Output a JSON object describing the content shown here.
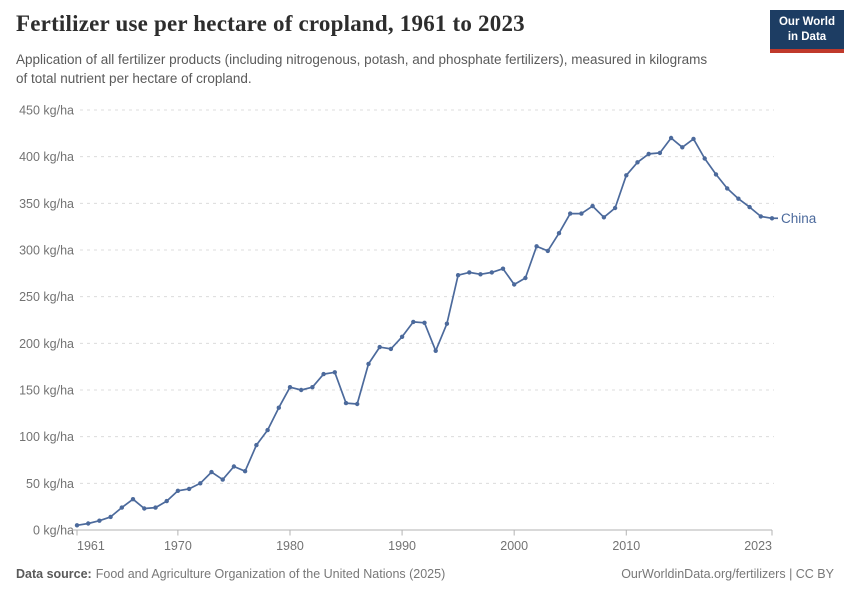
{
  "header": {
    "title": "Fertilizer use per hectare of cropland, 1961 to 2023",
    "subtitle": "Application of all fertilizer products (including nitrogenous, potash, and phosphate fertilizers), measured in kilograms of total nutrient per hectare of cropland.",
    "logo": {
      "line1": "Our World",
      "line2": "in Data",
      "bg_color": "#1D3D63",
      "stripe_color": "#C0392B"
    }
  },
  "chart_data": {
    "type": "line",
    "title": "Fertilizer use per hectare of cropland, 1961 to 2023",
    "xlabel": "",
    "ylabel": "kg/ha",
    "xlim": [
      1961,
      2023
    ],
    "ylim": [
      0,
      450
    ],
    "grid": "horizontal-dashed",
    "legend_position": "end-of-line-label",
    "x_ticks": [
      1961,
      1970,
      1980,
      1990,
      2000,
      2010,
      2023
    ],
    "y_ticks": [
      0,
      50,
      100,
      150,
      200,
      250,
      300,
      350,
      400,
      450
    ],
    "y_tick_suffix": " kg/ha",
    "series": [
      {
        "name": "China",
        "color": "#4C6A9C",
        "x": [
          1961,
          1962,
          1963,
          1964,
          1965,
          1966,
          1967,
          1968,
          1969,
          1970,
          1971,
          1972,
          1973,
          1974,
          1975,
          1976,
          1977,
          1978,
          1979,
          1980,
          1981,
          1982,
          1983,
          1984,
          1985,
          1986,
          1987,
          1988,
          1989,
          1990,
          1991,
          1992,
          1993,
          1994,
          1995,
          1996,
          1997,
          1998,
          1999,
          2000,
          2001,
          2002,
          2003,
          2004,
          2005,
          2006,
          2007,
          2008,
          2009,
          2010,
          2011,
          2012,
          2013,
          2014,
          2015,
          2016,
          2017,
          2018,
          2019,
          2020,
          2021,
          2022,
          2023
        ],
        "values": [
          5,
          7,
          10,
          14,
          24,
          33,
          23,
          24,
          31,
          42,
          44,
          50,
          62,
          54,
          68,
          63,
          91,
          107,
          131,
          153,
          150,
          153,
          167,
          169,
          136,
          135,
          178,
          196,
          194,
          207,
          223,
          222,
          192,
          221,
          273,
          276,
          274,
          276,
          280,
          263,
          270,
          304,
          299,
          318,
          339,
          339,
          347,
          335,
          345,
          380,
          394,
          403,
          404,
          420,
          410,
          419,
          398,
          381,
          366,
          355,
          346,
          336,
          334
        ]
      }
    ]
  },
  "footer": {
    "source_label": "Data source:",
    "source_text": "Food and Agriculture Organization of the United Nations (2025)",
    "credit": "OurWorldinData.org/fertilizers | CC BY"
  }
}
